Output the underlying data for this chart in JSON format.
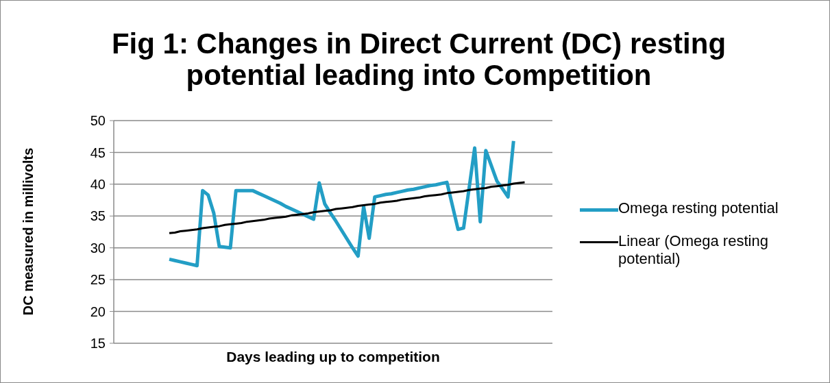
{
  "chart_data": {
    "type": "line",
    "title": "Fig 1: Changes in Direct Current (DC) resting potential leading into Competition",
    "xlabel": "Days leading up to competition",
    "ylabel": "DC measured in millivolts",
    "categories": [
      null,
      null,
      null,
      null,
      null,
      null,
      null,
      null,
      null,
      null,
      null,
      null,
      null,
      null,
      null,
      null,
      null,
      null,
      null,
      null,
      null,
      null,
      null,
      null,
      null,
      null,
      null,
      null,
      null,
      null,
      null,
      null,
      null,
      null,
      null,
      null,
      null,
      null,
      null,
      null,
      null,
      null,
      null,
      null,
      null,
      null,
      null,
      null,
      null,
      null,
      null,
      null,
      null,
      null,
      null,
      null,
      null,
      null,
      null,
      null,
      null,
      null,
      null,
      null,
      null,
      null,
      null,
      null,
      null,
      null,
      null,
      null,
      null,
      null,
      null,
      null,
      null,
      null,
      null,
      null
    ],
    "ylim": [
      15,
      50
    ],
    "yticks": [
      15,
      20,
      25,
      30,
      35,
      40,
      45,
      50
    ],
    "tick_labels": "y",
    "grid": "y",
    "legend": "right",
    "marker": "none",
    "series": [
      {
        "name": "Omega resting potential",
        "color": "#239ec5",
        "values": [
          null,
          null,
          null,
          null,
          null,
          null,
          null,
          null,
          null,
          null,
          28.2,
          28.0,
          27.8,
          27.6,
          27.4,
          27.2,
          39.0,
          38.3,
          35.5,
          30.2,
          30.1,
          30.0,
          39.0,
          39.0,
          39.0,
          39.0,
          38.6,
          38.2,
          37.8,
          37.4,
          37.0,
          36.5,
          36.1,
          35.7,
          35.3,
          34.9,
          34.5,
          40.2,
          36.9,
          35.5,
          34.2,
          32.8,
          31.4,
          30.0,
          28.7,
          36.5,
          31.5,
          38.0,
          38.2,
          38.4,
          38.5,
          38.7,
          38.9,
          39.1,
          39.2,
          39.4,
          39.6,
          39.8,
          39.9,
          40.1,
          40.3,
          36.6,
          32.9,
          33.1,
          39.4,
          45.7,
          34.1,
          45.3,
          42.9,
          40.5,
          39.3,
          38.0,
          46.8,
          null,
          null,
          null,
          null,
          null,
          null,
          null
        ]
      },
      {
        "name": "Linear (Omega resting potential)",
        "color": "#000000",
        "type": "line",
        "values": [
          null,
          null,
          null,
          null,
          null,
          null,
          null,
          null,
          null,
          null,
          32.3,
          32.4,
          32.6,
          32.7,
          32.8,
          32.9,
          33.1,
          33.2,
          33.3,
          33.4,
          33.6,
          33.7,
          33.8,
          33.9,
          34.1,
          34.2,
          34.3,
          34.4,
          34.6,
          34.7,
          34.8,
          34.9,
          35.1,
          35.2,
          35.3,
          35.4,
          35.6,
          35.7,
          35.8,
          35.9,
          36.1,
          36.2,
          36.3,
          36.4,
          36.6,
          36.7,
          36.8,
          36.9,
          37.1,
          37.2,
          37.3,
          37.4,
          37.6,
          37.7,
          37.8,
          37.9,
          38.1,
          38.2,
          38.3,
          38.4,
          38.6,
          38.7,
          38.8,
          38.9,
          39.1,
          39.2,
          39.3,
          39.4,
          39.6,
          39.7,
          39.8,
          39.9,
          40.1,
          40.2,
          40.3,
          null,
          null,
          null,
          null,
          null
        ]
      }
    ]
  }
}
